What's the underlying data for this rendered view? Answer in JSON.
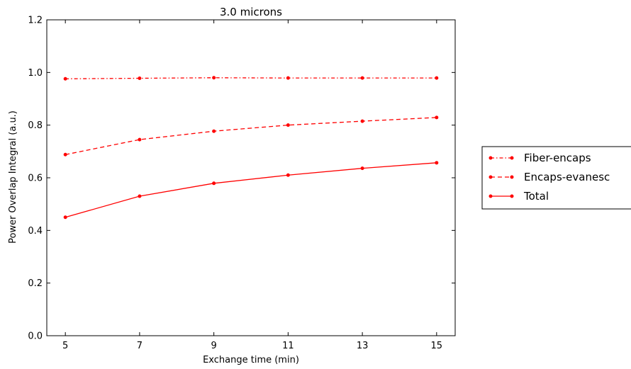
{
  "chart_data": {
    "type": "line",
    "title": "3.0 microns",
    "xlabel": "Exchange time (min)",
    "ylabel": "Power Overlap Integral (a.u.)",
    "x": [
      5,
      7,
      9,
      11,
      13,
      15
    ],
    "xticks": [
      "5",
      "7",
      "9",
      "11",
      "13",
      "15"
    ],
    "xlim": [
      4.5,
      15.5
    ],
    "ylim": [
      0.0,
      1.2
    ],
    "yticks": [
      "0.0",
      "0.2",
      "0.4",
      "0.6",
      "0.8",
      "1.0",
      "1.2"
    ],
    "grid": false,
    "legend_position": "outside-right",
    "series": [
      {
        "name": "Fiber-encaps",
        "values": [
          0.976,
          0.978,
          0.98,
          0.979,
          0.979,
          0.979
        ],
        "style": "dashdot",
        "color": "#ff0000"
      },
      {
        "name": "Encaps-evanesc",
        "values": [
          0.688,
          0.745,
          0.777,
          0.8,
          0.815,
          0.829
        ],
        "style": "dashed",
        "color": "#ff0000"
      },
      {
        "name": "Total",
        "values": [
          0.45,
          0.53,
          0.579,
          0.61,
          0.636,
          0.657
        ],
        "style": "solid",
        "color": "#ff0000"
      }
    ]
  }
}
